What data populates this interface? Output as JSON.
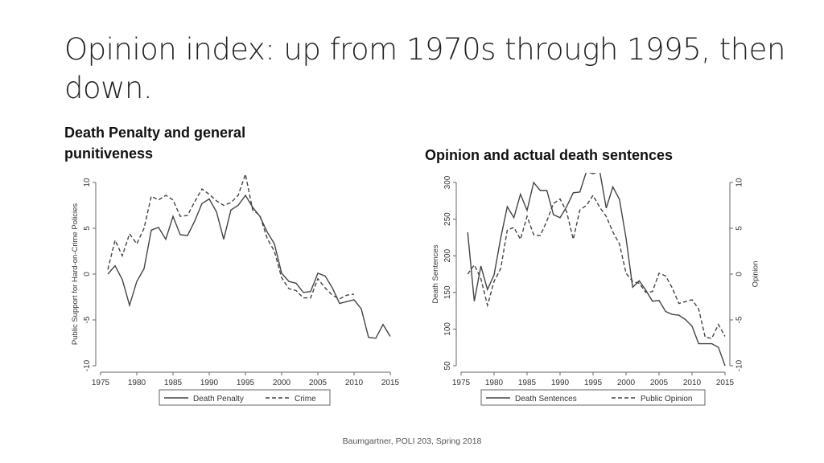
{
  "slide": {
    "title": "Opinion index: up from 1970s through 1995, then down.",
    "footer": "Baumgartner, POLI 203, Spring 2018"
  },
  "chart_data": [
    {
      "type": "line",
      "title": "Death Penalty and general punitiveness",
      "xlabel": "",
      "ylabel": "Public Support for Hard-on-Crime Policies",
      "xlim": [
        1975,
        2015
      ],
      "ylim": [
        -10,
        10
      ],
      "xticks": [
        1975,
        1980,
        1985,
        1990,
        1995,
        2000,
        2005,
        2010,
        2015
      ],
      "yticks": [
        -10,
        -5,
        0,
        5,
        10
      ],
      "grid": false,
      "legend_position": "bottom",
      "series": [
        {
          "name": "Death Penalty",
          "style": "solid",
          "color": "#444444",
          "x": [
            1976,
            1977,
            1978,
            1979,
            1980,
            1981,
            1982,
            1983,
            1984,
            1985,
            1986,
            1987,
            1988,
            1989,
            1990,
            1991,
            1992,
            1993,
            1994,
            1995,
            1996,
            1997,
            1998,
            1999,
            2000,
            2001,
            2002,
            2003,
            2004,
            2005,
            2006,
            2007,
            2008,
            2009,
            2010,
            2011,
            2012,
            2013,
            2014,
            2015
          ],
          "y": [
            0.0,
            0.9,
            -0.6,
            -3.4,
            -0.8,
            0.6,
            4.8,
            5.1,
            3.8,
            6.3,
            4.3,
            4.2,
            5.8,
            7.7,
            8.2,
            6.8,
            3.8,
            7.0,
            7.5,
            8.6,
            7.3,
            6.3,
            4.6,
            3.3,
            0.1,
            -0.8,
            -1.0,
            -2.0,
            -1.9,
            0.1,
            -0.2,
            -1.5,
            -3.2,
            -3.0,
            -2.8,
            -3.8,
            -6.9,
            -7.0,
            -5.5,
            -6.8
          ]
        },
        {
          "name": "Crime",
          "style": "dashed",
          "color": "#444444",
          "x": [
            1976,
            1977,
            1978,
            1979,
            1980,
            1981,
            1982,
            1983,
            1984,
            1985,
            1986,
            1987,
            1988,
            1989,
            1990,
            1991,
            1992,
            1993,
            1994,
            1995,
            1996,
            1997,
            1998,
            1999,
            2000,
            2001,
            2002,
            2003,
            2004,
            2005,
            2006,
            2007,
            2008,
            2009,
            2010
          ],
          "y": [
            0.5,
            3.7,
            2.0,
            4.4,
            3.3,
            5.0,
            8.5,
            8.1,
            8.6,
            8.1,
            6.3,
            6.4,
            7.9,
            9.3,
            8.7,
            8.0,
            7.5,
            7.8,
            8.6,
            10.9,
            7.0,
            6.4,
            3.9,
            2.5,
            -0.4,
            -1.6,
            -1.8,
            -2.6,
            -2.6,
            -0.5,
            -1.5,
            -2.3,
            -2.7,
            -2.3,
            -2.2
          ]
        }
      ]
    },
    {
      "type": "line",
      "title": "Opinion and actual death sentences",
      "xlabel": "",
      "ylabel": "Death Sentences",
      "y2label": "Opinion",
      "xlim": [
        1975,
        2015
      ],
      "ylim": [
        50,
        300
      ],
      "y2lim": [
        -10,
        10
      ],
      "xticks": [
        1975,
        1980,
        1985,
        1990,
        1995,
        2000,
        2005,
        2010,
        2015
      ],
      "yticks": [
        50,
        100,
        150,
        200,
        250,
        300
      ],
      "y2ticks": [
        -10,
        -5,
        0,
        5,
        10
      ],
      "grid": false,
      "legend_position": "bottom",
      "series": [
        {
          "name": "Death Sentences",
          "style": "solid",
          "color": "#444444",
          "axis": "left",
          "x": [
            1976,
            1977,
            1978,
            1979,
            1980,
            1981,
            1982,
            1983,
            1984,
            1985,
            1986,
            1987,
            1988,
            1989,
            1990,
            1991,
            1992,
            1993,
            1994,
            1995,
            1996,
            1997,
            1998,
            1999,
            2000,
            2001,
            2002,
            2003,
            2004,
            2005,
            2006,
            2007,
            2008,
            2009,
            2010,
            2011,
            2012,
            2013,
            2014,
            2015
          ],
          "y": [
            232,
            138,
            186,
            154,
            174,
            224,
            267,
            252,
            284,
            262,
            300,
            289,
            289,
            256,
            252,
            267,
            286,
            287,
            315,
            312,
            316,
            265,
            294,
            277,
            224,
            157,
            166,
            153,
            138,
            139,
            124,
            120,
            119,
            113,
            104,
            80,
            80,
            80,
            75,
            50
          ]
        },
        {
          "name": "Public Opinion",
          "style": "dashed",
          "color": "#444444",
          "axis": "right",
          "x": [
            1976,
            1977,
            1978,
            1979,
            1980,
            1981,
            1982,
            1983,
            1984,
            1985,
            1986,
            1987,
            1988,
            1989,
            1990,
            1991,
            1992,
            1993,
            1994,
            1995,
            1996,
            1997,
            1998,
            1999,
            2000,
            2001,
            2002,
            2003,
            2004,
            2005,
            2006,
            2007,
            2008,
            2009,
            2010,
            2011,
            2012,
            2013,
            2014,
            2015
          ],
          "y": [
            0.0,
            1.0,
            -0.5,
            -3.4,
            -0.8,
            0.6,
            4.8,
            5.1,
            3.8,
            6.3,
            4.3,
            4.2,
            5.8,
            7.7,
            8.2,
            6.8,
            3.8,
            7.0,
            7.5,
            8.6,
            7.3,
            6.3,
            4.6,
            3.3,
            0.1,
            -0.8,
            -1.0,
            -2.0,
            -1.9,
            0.1,
            -0.2,
            -1.5,
            -3.2,
            -3.0,
            -2.8,
            -3.8,
            -6.9,
            -7.0,
            -5.5,
            -6.8
          ]
        }
      ]
    }
  ]
}
